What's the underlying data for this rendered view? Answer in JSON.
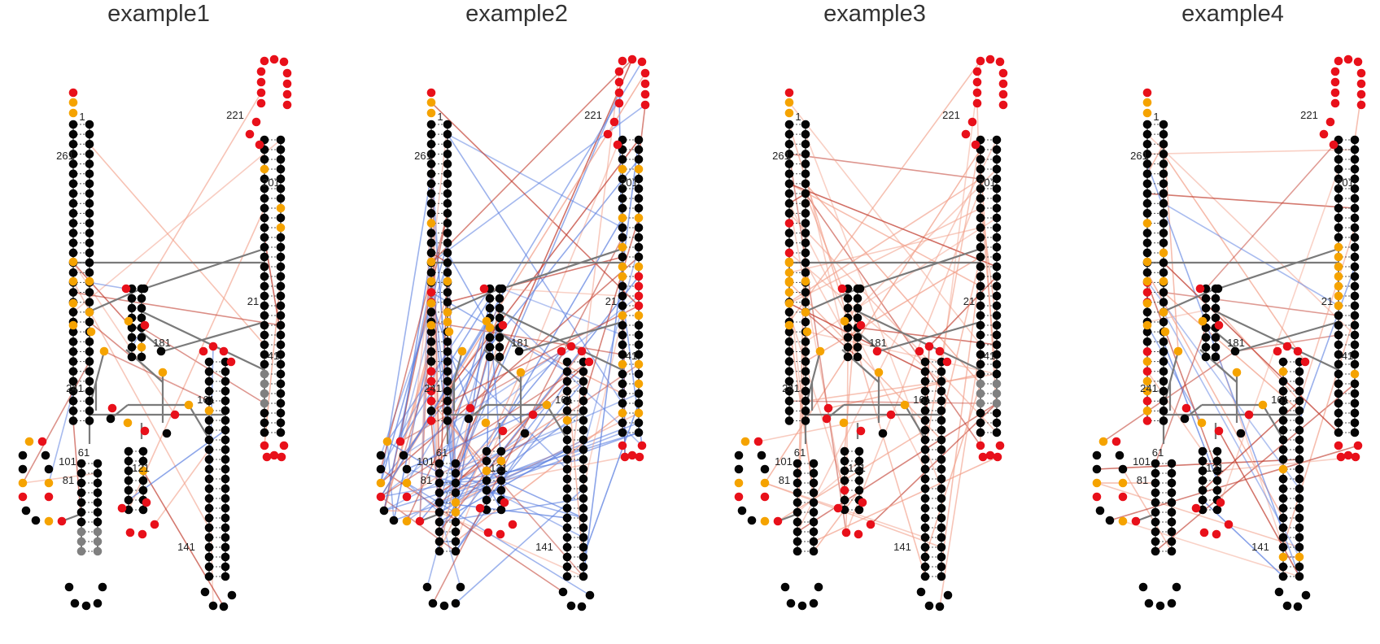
{
  "figure": {
    "panels": [
      {
        "title": "example1",
        "variant": 1
      },
      {
        "title": "example2",
        "variant": 2
      },
      {
        "title": "example3",
        "variant": 3
      },
      {
        "title": "example4",
        "variant": 4
      }
    ],
    "position_labels": [
      "1",
      "21",
      "41",
      "61",
      "81",
      "101",
      "121",
      "141",
      "161",
      "181",
      "201",
      "221",
      "241",
      "261"
    ],
    "colors": {
      "unpaired_red": "#e8101a",
      "unpaired_orange": "#f5a300",
      "paired_black": "#050505",
      "neutral_gray": "#808080",
      "backbone": "#7a7a7a",
      "link_red": "#c0392b",
      "link_blue": "#5b7fe0",
      "link_salmon": "#f2a08a"
    }
  }
}
